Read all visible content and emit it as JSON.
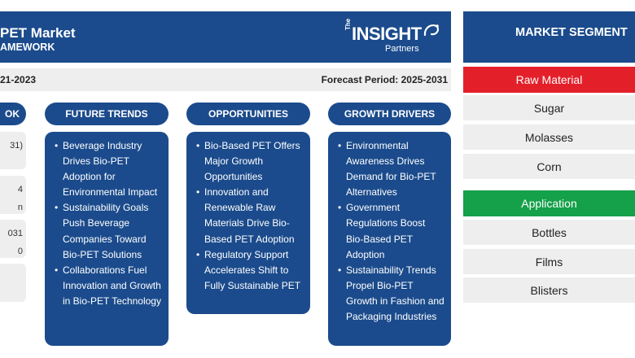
{
  "header": {
    "title": "PET Market",
    "subtitle": "AMEWORK"
  },
  "logo": {
    "the": "The",
    "insight": "INSIGHT",
    "partners": "Partners"
  },
  "periods": {
    "historic": "21-2023",
    "forecast": "Forecast Period: 2025-2031"
  },
  "columns": {
    "outlook": {
      "heading": "OK",
      "cards": [
        [
          "31)",
          ""
        ],
        [
          "4",
          "n"
        ],
        [
          "031",
          "0"
        ],
        [
          "",
          ""
        ]
      ]
    },
    "future_trends": {
      "heading": "FUTURE TRENDS",
      "items": [
        "Beverage Industry Drives Bio-PET Adoption for Environmental Impact",
        "Sustainability Goals Push Beverage Companies Toward Bio-PET Solutions",
        "Collaborations Fuel Innovation and Growth in Bio-PET Technology"
      ]
    },
    "opportunities": {
      "heading": "OPPORTUNITIES",
      "items": [
        "Bio-Based PET Offers Major Growth Opportunities",
        "Innovation and Renewable Raw Materials Drive Bio-Based PET Adoption",
        "Regulatory Support Accelerates Shift to Fully Sustainable PET"
      ]
    },
    "growth_drivers": {
      "heading": "GROWTH DRIVERS",
      "items": [
        "Environmental Awareness Drives Demand for Bio-PET Alternatives",
        "Government Regulations Boost Bio-Based PET Adoption",
        "Sustainability Trends Propel Bio-PET Growth in Fashion and Packaging Industries"
      ]
    }
  },
  "segments": {
    "heading": "MARKET SEGMENT",
    "groups": [
      {
        "name": "Raw Material",
        "color": "#e3202a",
        "items": [
          "Sugar",
          "Molasses",
          "Corn"
        ]
      },
      {
        "name": "Application",
        "color": "#15a04a",
        "items": [
          "Bottles",
          "Films",
          "Blisters"
        ]
      }
    ]
  },
  "colors": {
    "primary": "#1b4b8c",
    "panel": "#eeeeee"
  }
}
